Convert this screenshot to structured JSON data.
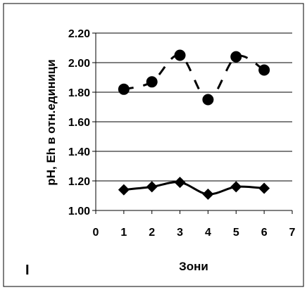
{
  "chart_data": {
    "type": "line",
    "xlabel": "Зони",
    "ylabel": "pH, Eh в отн.единици",
    "corner_label": "I",
    "xlim": [
      0,
      7
    ],
    "ylim": [
      1.0,
      2.2
    ],
    "x_ticks": [
      "0",
      "1",
      "2",
      "3",
      "4",
      "5",
      "6",
      "7"
    ],
    "y_ticks": [
      "1.00",
      "1.20",
      "1.40",
      "1.60",
      "1.80",
      "2.00",
      "2.20"
    ],
    "grid": "horizontal",
    "legend": "none",
    "series": [
      {
        "marker": "circle",
        "line": "dashed-smoothed",
        "x": [
          1,
          2,
          3,
          4,
          5,
          6
        ],
        "values": [
          1.82,
          1.87,
          2.05,
          1.75,
          2.04,
          1.95
        ]
      },
      {
        "marker": "diamond",
        "line": "solid-smoothed",
        "x": [
          1,
          2,
          3,
          4,
          5,
          6
        ],
        "values": [
          1.14,
          1.16,
          1.19,
          1.11,
          1.16,
          1.15
        ]
      }
    ],
    "colors": {
      "series": "#000000",
      "grid": "#000000",
      "background": "#ffffff"
    }
  }
}
